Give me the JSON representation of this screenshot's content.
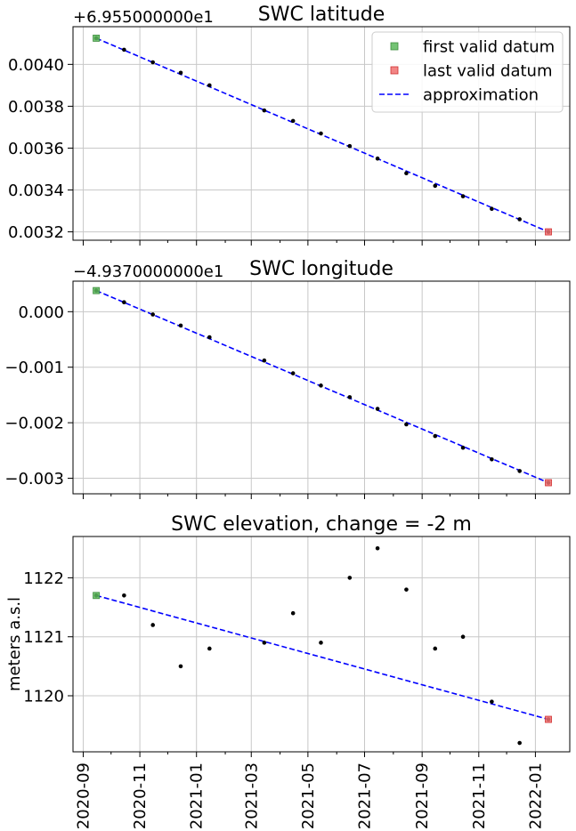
{
  "chart_data": [
    {
      "type": "scatter",
      "title": "SWC latitude",
      "offset_text": "+6.955000000e1",
      "ylabel": "",
      "xlabel": "",
      "show_xticklabels": false,
      "ylim": [
        0.00316,
        0.00418
      ],
      "yticks": [
        0.0032,
        0.0034,
        0.0036,
        0.0038,
        0.004
      ],
      "ytick_labels": [
        "0.0032",
        "0.0034",
        "0.0036",
        "0.0038",
        "0.0040"
      ],
      "grid": true,
      "legend": {
        "placement": "top-right",
        "entries": [
          {
            "label": "first valid datum",
            "color": "#5cb85c",
            "marker": "square"
          },
          {
            "label": "last valid datum",
            "color": "#f07070",
            "marker": "square"
          },
          {
            "label": "approximation",
            "color": "#0000ff",
            "marker": "dashed-line"
          }
        ]
      },
      "points": [
        {
          "x": "2020-09-15",
          "y": 0.004125
        },
        {
          "x": "2020-10-15",
          "y": 0.00407
        },
        {
          "x": "2020-11-15",
          "y": 0.00401
        },
        {
          "x": "2020-12-15",
          "y": 0.00396
        },
        {
          "x": "2021-01-15",
          "y": 0.0039
        },
        {
          "x": "2021-03-15",
          "y": 0.00378
        },
        {
          "x": "2021-04-15",
          "y": 0.00373
        },
        {
          "x": "2021-05-15",
          "y": 0.00367
        },
        {
          "x": "2021-06-15",
          "y": 0.00361
        },
        {
          "x": "2021-07-15",
          "y": 0.00355
        },
        {
          "x": "2021-08-15",
          "y": 0.00348
        },
        {
          "x": "2021-09-15",
          "y": 0.00342
        },
        {
          "x": "2021-10-15",
          "y": 0.00337
        },
        {
          "x": "2021-11-15",
          "y": 0.00331
        },
        {
          "x": "2021-12-15",
          "y": 0.00326
        },
        {
          "x": "2022-01-15",
          "y": 0.0032
        }
      ],
      "first": {
        "x": "2020-09-15",
        "y": 0.004125
      },
      "last": {
        "x": "2022-01-15",
        "y": 0.0032
      },
      "approximation": [
        {
          "x": "2020-09-15",
          "y": 0.004125
        },
        {
          "x": "2022-01-15",
          "y": 0.0032
        }
      ]
    },
    {
      "type": "scatter",
      "title": "SWC longitude",
      "offset_text": "−4.9370000000e1",
      "ylabel": "",
      "xlabel": "",
      "show_xticklabels": false,
      "ylim": [
        -0.00328,
        0.00055
      ],
      "yticks": [
        -0.003,
        -0.002,
        -0.001,
        0.0
      ],
      "ytick_labels": [
        "−0.003",
        "−0.002",
        "−0.001",
        "0.000"
      ],
      "grid": true,
      "points": [
        {
          "x": "2020-09-15",
          "y": 0.00038
        },
        {
          "x": "2020-10-15",
          "y": 0.00017
        },
        {
          "x": "2020-11-15",
          "y": -5e-05
        },
        {
          "x": "2020-12-15",
          "y": -0.00025
        },
        {
          "x": "2021-01-15",
          "y": -0.00046
        },
        {
          "x": "2021-03-15",
          "y": -0.00088
        },
        {
          "x": "2021-04-15",
          "y": -0.00111
        },
        {
          "x": "2021-05-15",
          "y": -0.00133
        },
        {
          "x": "2021-06-15",
          "y": -0.00154
        },
        {
          "x": "2021-07-15",
          "y": -0.00175
        },
        {
          "x": "2021-08-15",
          "y": -0.00203
        },
        {
          "x": "2021-09-15",
          "y": -0.00224
        },
        {
          "x": "2021-10-15",
          "y": -0.00245
        },
        {
          "x": "2021-11-15",
          "y": -0.00266
        },
        {
          "x": "2021-12-15",
          "y": -0.00287
        },
        {
          "x": "2022-01-15",
          "y": -0.00308
        }
      ],
      "first": {
        "x": "2020-09-15",
        "y": 0.00038
      },
      "last": {
        "x": "2022-01-15",
        "y": -0.00308
      },
      "approximation": [
        {
          "x": "2020-09-15",
          "y": 0.00038
        },
        {
          "x": "2022-01-15",
          "y": -0.00308
        }
      ]
    },
    {
      "type": "scatter",
      "title": "SWC elevation, change = -2 m",
      "offset_text": "",
      "ylabel": "meters a.s.l",
      "xlabel": "",
      "show_xticklabels": true,
      "ylim": [
        1119.05,
        1122.7
      ],
      "yticks": [
        1120,
        1121,
        1122
      ],
      "ytick_labels": [
        "1120",
        "1121",
        "1122"
      ],
      "grid": true,
      "points": [
        {
          "x": "2020-09-15",
          "y": 1121.7
        },
        {
          "x": "2020-10-15",
          "y": 1121.7
        },
        {
          "x": "2020-11-15",
          "y": 1121.2
        },
        {
          "x": "2020-12-15",
          "y": 1120.5
        },
        {
          "x": "2021-01-15",
          "y": 1120.8
        },
        {
          "x": "2021-03-15",
          "y": 1120.9
        },
        {
          "x": "2021-04-15",
          "y": 1121.4
        },
        {
          "x": "2021-05-15",
          "y": 1120.9
        },
        {
          "x": "2021-06-15",
          "y": 1122.0
        },
        {
          "x": "2021-07-15",
          "y": 1122.5
        },
        {
          "x": "2021-08-15",
          "y": 1121.8
        },
        {
          "x": "2021-09-15",
          "y": 1120.8
        },
        {
          "x": "2021-10-15",
          "y": 1121.0
        },
        {
          "x": "2021-11-15",
          "y": 1119.9
        },
        {
          "x": "2021-12-15",
          "y": 1119.2
        },
        {
          "x": "2022-01-15",
          "y": 1119.6
        }
      ],
      "first": {
        "x": "2020-09-15",
        "y": 1121.7
      },
      "last": {
        "x": "2022-01-15",
        "y": 1119.6
      },
      "approximation": [
        {
          "x": "2020-09-15",
          "y": 1121.7
        },
        {
          "x": "2022-01-15",
          "y": 1119.6
        }
      ]
    }
  ],
  "x_axis": {
    "range": [
      "2020-08-21",
      "2022-02-07"
    ],
    "ticks": [
      "2020-09-01",
      "2020-11-01",
      "2021-01-01",
      "2021-03-01",
      "2021-05-01",
      "2021-07-01",
      "2021-09-01",
      "2021-11-01",
      "2022-01-01"
    ],
    "tick_labels": [
      "2020-09",
      "2020-11",
      "2021-01",
      "2021-03",
      "2021-05",
      "2021-07",
      "2021-09",
      "2021-11",
      "2022-01"
    ],
    "minor_ticks": [
      "2020-10-01",
      "2020-12-01",
      "2021-02-01",
      "2021-04-01",
      "2021-06-01",
      "2021-08-01",
      "2021-10-01",
      "2021-12-01"
    ]
  },
  "colors": {
    "first": "#5cb85c",
    "first_edge": "#3c8c3c",
    "last": "#f07070",
    "last_edge": "#d03030",
    "approximation": "#0000ff",
    "points": "#000000"
  }
}
